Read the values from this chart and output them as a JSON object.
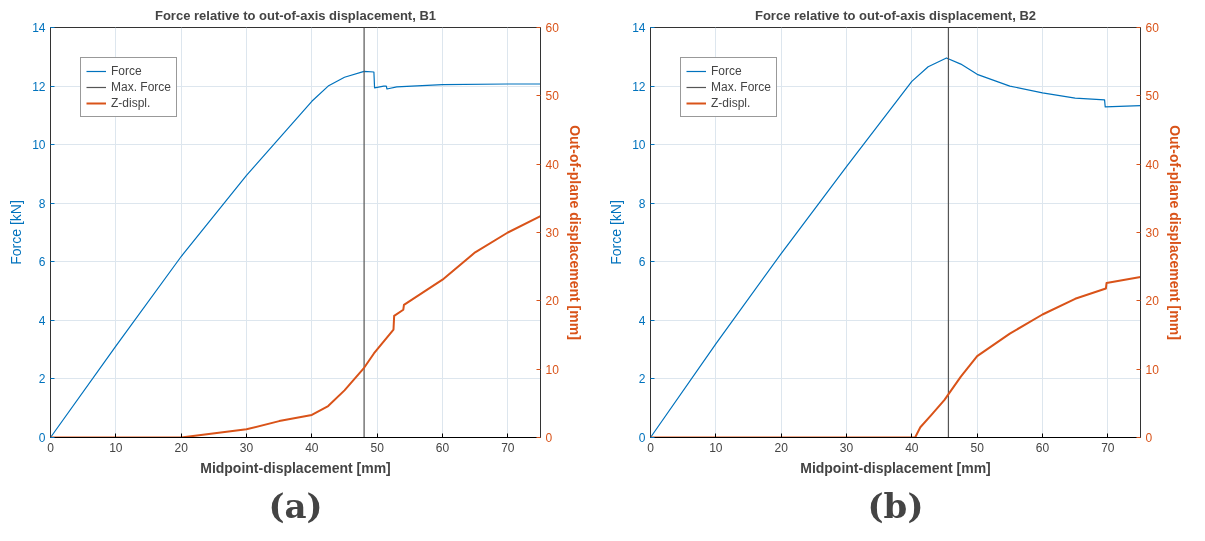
{
  "chart_data": [
    {
      "type": "line",
      "title": "Force relative to out-of-axis displacement, B1",
      "xlabel": "Midpoint-displacement [mm]",
      "ylabel": "Force [kN]",
      "y2label": "Out-of-plane displacement [mm]",
      "xlim": [
        0,
        75
      ],
      "xticks": [
        0,
        10,
        20,
        30,
        40,
        50,
        60,
        70
      ],
      "ylim": [
        0,
        14
      ],
      "yticks": [
        0,
        2,
        4,
        6,
        8,
        10,
        12,
        14
      ],
      "y2lim": [
        0,
        60
      ],
      "y2ticks": [
        0,
        10,
        20,
        30,
        40,
        50,
        60
      ],
      "grid": true,
      "legend": "top left",
      "annotations": [
        "(a)"
      ],
      "series": [
        {
          "name": "Force",
          "color": "#0072bd",
          "x": [
            0,
            10,
            20,
            30,
            40,
            42.5,
            45,
            48,
            49.5,
            49.6,
            51,
            51.4,
            51.5,
            53,
            60,
            70,
            75
          ],
          "values": [
            0,
            3.12,
            6.18,
            8.95,
            11.48,
            12.0,
            12.3,
            12.5,
            12.48,
            11.94,
            12.0,
            12.0,
            11.9,
            11.97,
            12.05,
            12.07,
            12.07
          ]
        },
        {
          "name": "Max. Force",
          "color": "#555555",
          "x": [
            48,
            48
          ],
          "values": [
            0,
            14
          ]
        },
        {
          "name": "Z-displ.",
          "color": "#d95319",
          "axis": "y2",
          "x": [
            0,
            20,
            30,
            35,
            40,
            42.5,
            45,
            48,
            49.5,
            52.5,
            52.6,
            54,
            54.1,
            60,
            65,
            70,
            75
          ],
          "values": [
            0,
            0,
            1.2,
            2.4,
            3.3,
            4.6,
            6.9,
            10.2,
            12.3,
            15.8,
            17.8,
            18.7,
            19.4,
            23.1,
            27.1,
            30.0,
            32.4
          ]
        }
      ]
    },
    {
      "type": "line",
      "title": "Force relative to out-of-axis displacement, B2",
      "xlabel": "Midpoint-displacement [mm]",
      "ylabel": "Force [kN]",
      "y2label": "Out-of-plane displacement [mm]",
      "xlim": [
        0,
        75
      ],
      "xticks": [
        0,
        10,
        20,
        30,
        40,
        50,
        60,
        70
      ],
      "ylim": [
        0,
        14
      ],
      "yticks": [
        0,
        2,
        4,
        6,
        8,
        10,
        12,
        14
      ],
      "y2lim": [
        0,
        60
      ],
      "y2ticks": [
        0,
        10,
        20,
        30,
        40,
        50,
        60
      ],
      "grid": true,
      "legend": "top left",
      "annotations": [
        "(b)"
      ],
      "series": [
        {
          "name": "Force",
          "color": "#0072bd",
          "x": [
            0,
            10,
            20,
            30,
            40,
            42.5,
            45.3,
            47.5,
            50,
            55,
            60,
            65,
            69.5,
            69.6,
            75
          ],
          "values": [
            0,
            3.2,
            6.28,
            9.25,
            12.16,
            12.66,
            12.96,
            12.75,
            12.4,
            12.0,
            11.77,
            11.59,
            11.53,
            11.29,
            11.33
          ]
        },
        {
          "name": "Max. Force",
          "color": "#555555",
          "x": [
            45.6,
            45.6
          ],
          "values": [
            0,
            14
          ]
        },
        {
          "name": "Z-displ.",
          "color": "#d95319",
          "axis": "y2",
          "x": [
            0,
            40.5,
            41.3,
            43,
            45,
            47.5,
            50,
            55,
            60,
            65,
            69.7,
            69.8,
            75
          ],
          "values": [
            0,
            0,
            1.5,
            3.3,
            5.5,
            8.9,
            11.9,
            15.2,
            18.0,
            20.3,
            21.8,
            22.6,
            23.5
          ]
        }
      ]
    }
  ]
}
